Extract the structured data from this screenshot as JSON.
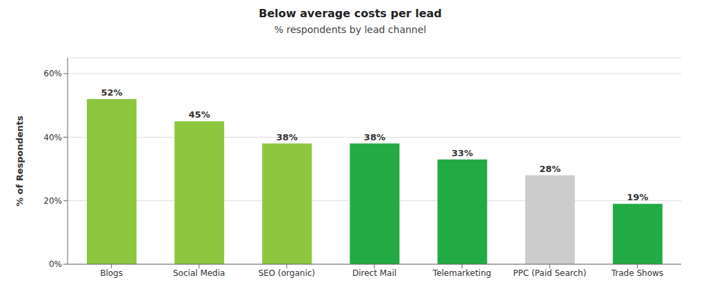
{
  "chart_data": {
    "type": "bar",
    "title": "Below average costs per lead",
    "subtitle": "% respondents by lead channel",
    "ylabel": "% of Respondents",
    "categories": [
      "Blogs",
      "Social Media",
      "SEO (organic)",
      "Direct Mail",
      "Telemarketing",
      "PPC (Paid Search)",
      "Trade Shows"
    ],
    "values": [
      52,
      45,
      38,
      38,
      33,
      28,
      19
    ],
    "value_labels": [
      "52%",
      "45%",
      "38%",
      "38%",
      "33%",
      "28%",
      "19%"
    ],
    "colors": [
      "#8dc63f",
      "#8dc63f",
      "#8dc63f",
      "#22aa44",
      "#22aa44",
      "#cccccc",
      "#22aa44"
    ],
    "ylim": [
      0,
      65
    ],
    "yticks": [
      {
        "value": 0,
        "label": "0%"
      },
      {
        "value": 20,
        "label": "20%"
      },
      {
        "value": 40,
        "label": "40%"
      },
      {
        "value": 60,
        "label": "60%"
      }
    ],
    "grid": true
  }
}
